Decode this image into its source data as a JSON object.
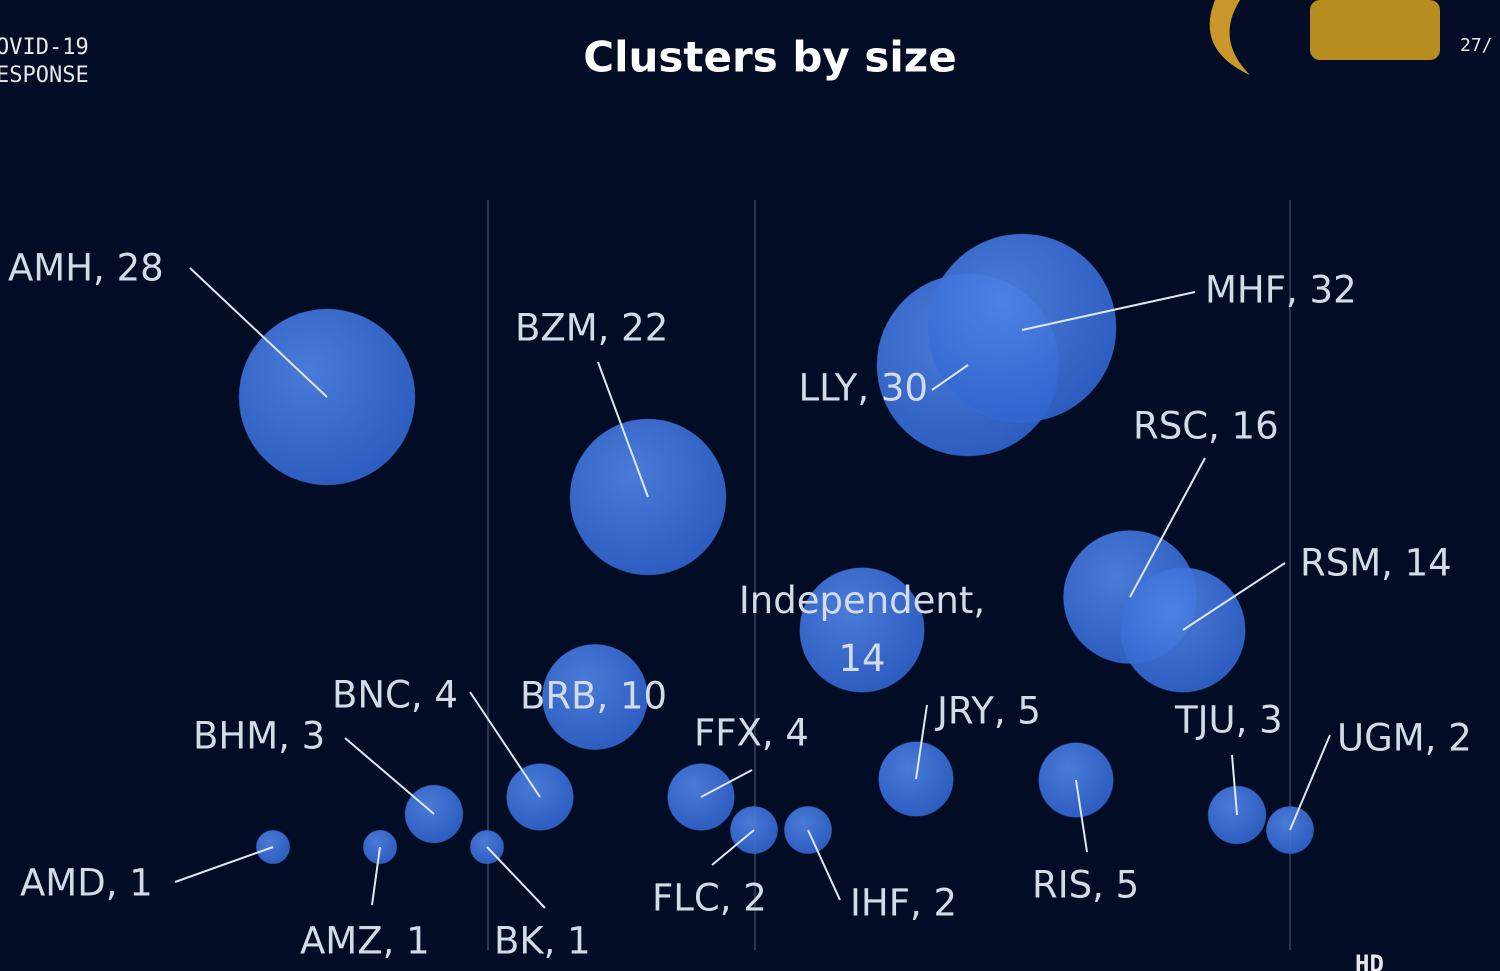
{
  "chart_data": {
    "type": "bubble",
    "title": "Clusters by size",
    "values": [
      28,
      22,
      30,
      32,
      16,
      14,
      14,
      10,
      4,
      3,
      4,
      5,
      5,
      3,
      2,
      1,
      1,
      1,
      2,
      2
    ],
    "value_labels": [
      "AMH, 28",
      "BZM, 22",
      "LLY, 30",
      "MHF, 32",
      "RSC, 16",
      "RSM, 14",
      "Independent, 14",
      "BRB, 10",
      "BNC, 4",
      "BHM, 3",
      "FFX, 4",
      "JRY, 5",
      "RIS, 5",
      "TJU, 3",
      "UGM, 2",
      "AMD, 1",
      "AMZ, 1",
      "BK, 1",
      "FLC, 2",
      "IHF, 2"
    ],
    "color": "#3f74dc"
  },
  "header": {
    "left_line1": "OVID-19",
    "left_line2": "ESPONSE",
    "right": "27/",
    "badge": "HD"
  }
}
